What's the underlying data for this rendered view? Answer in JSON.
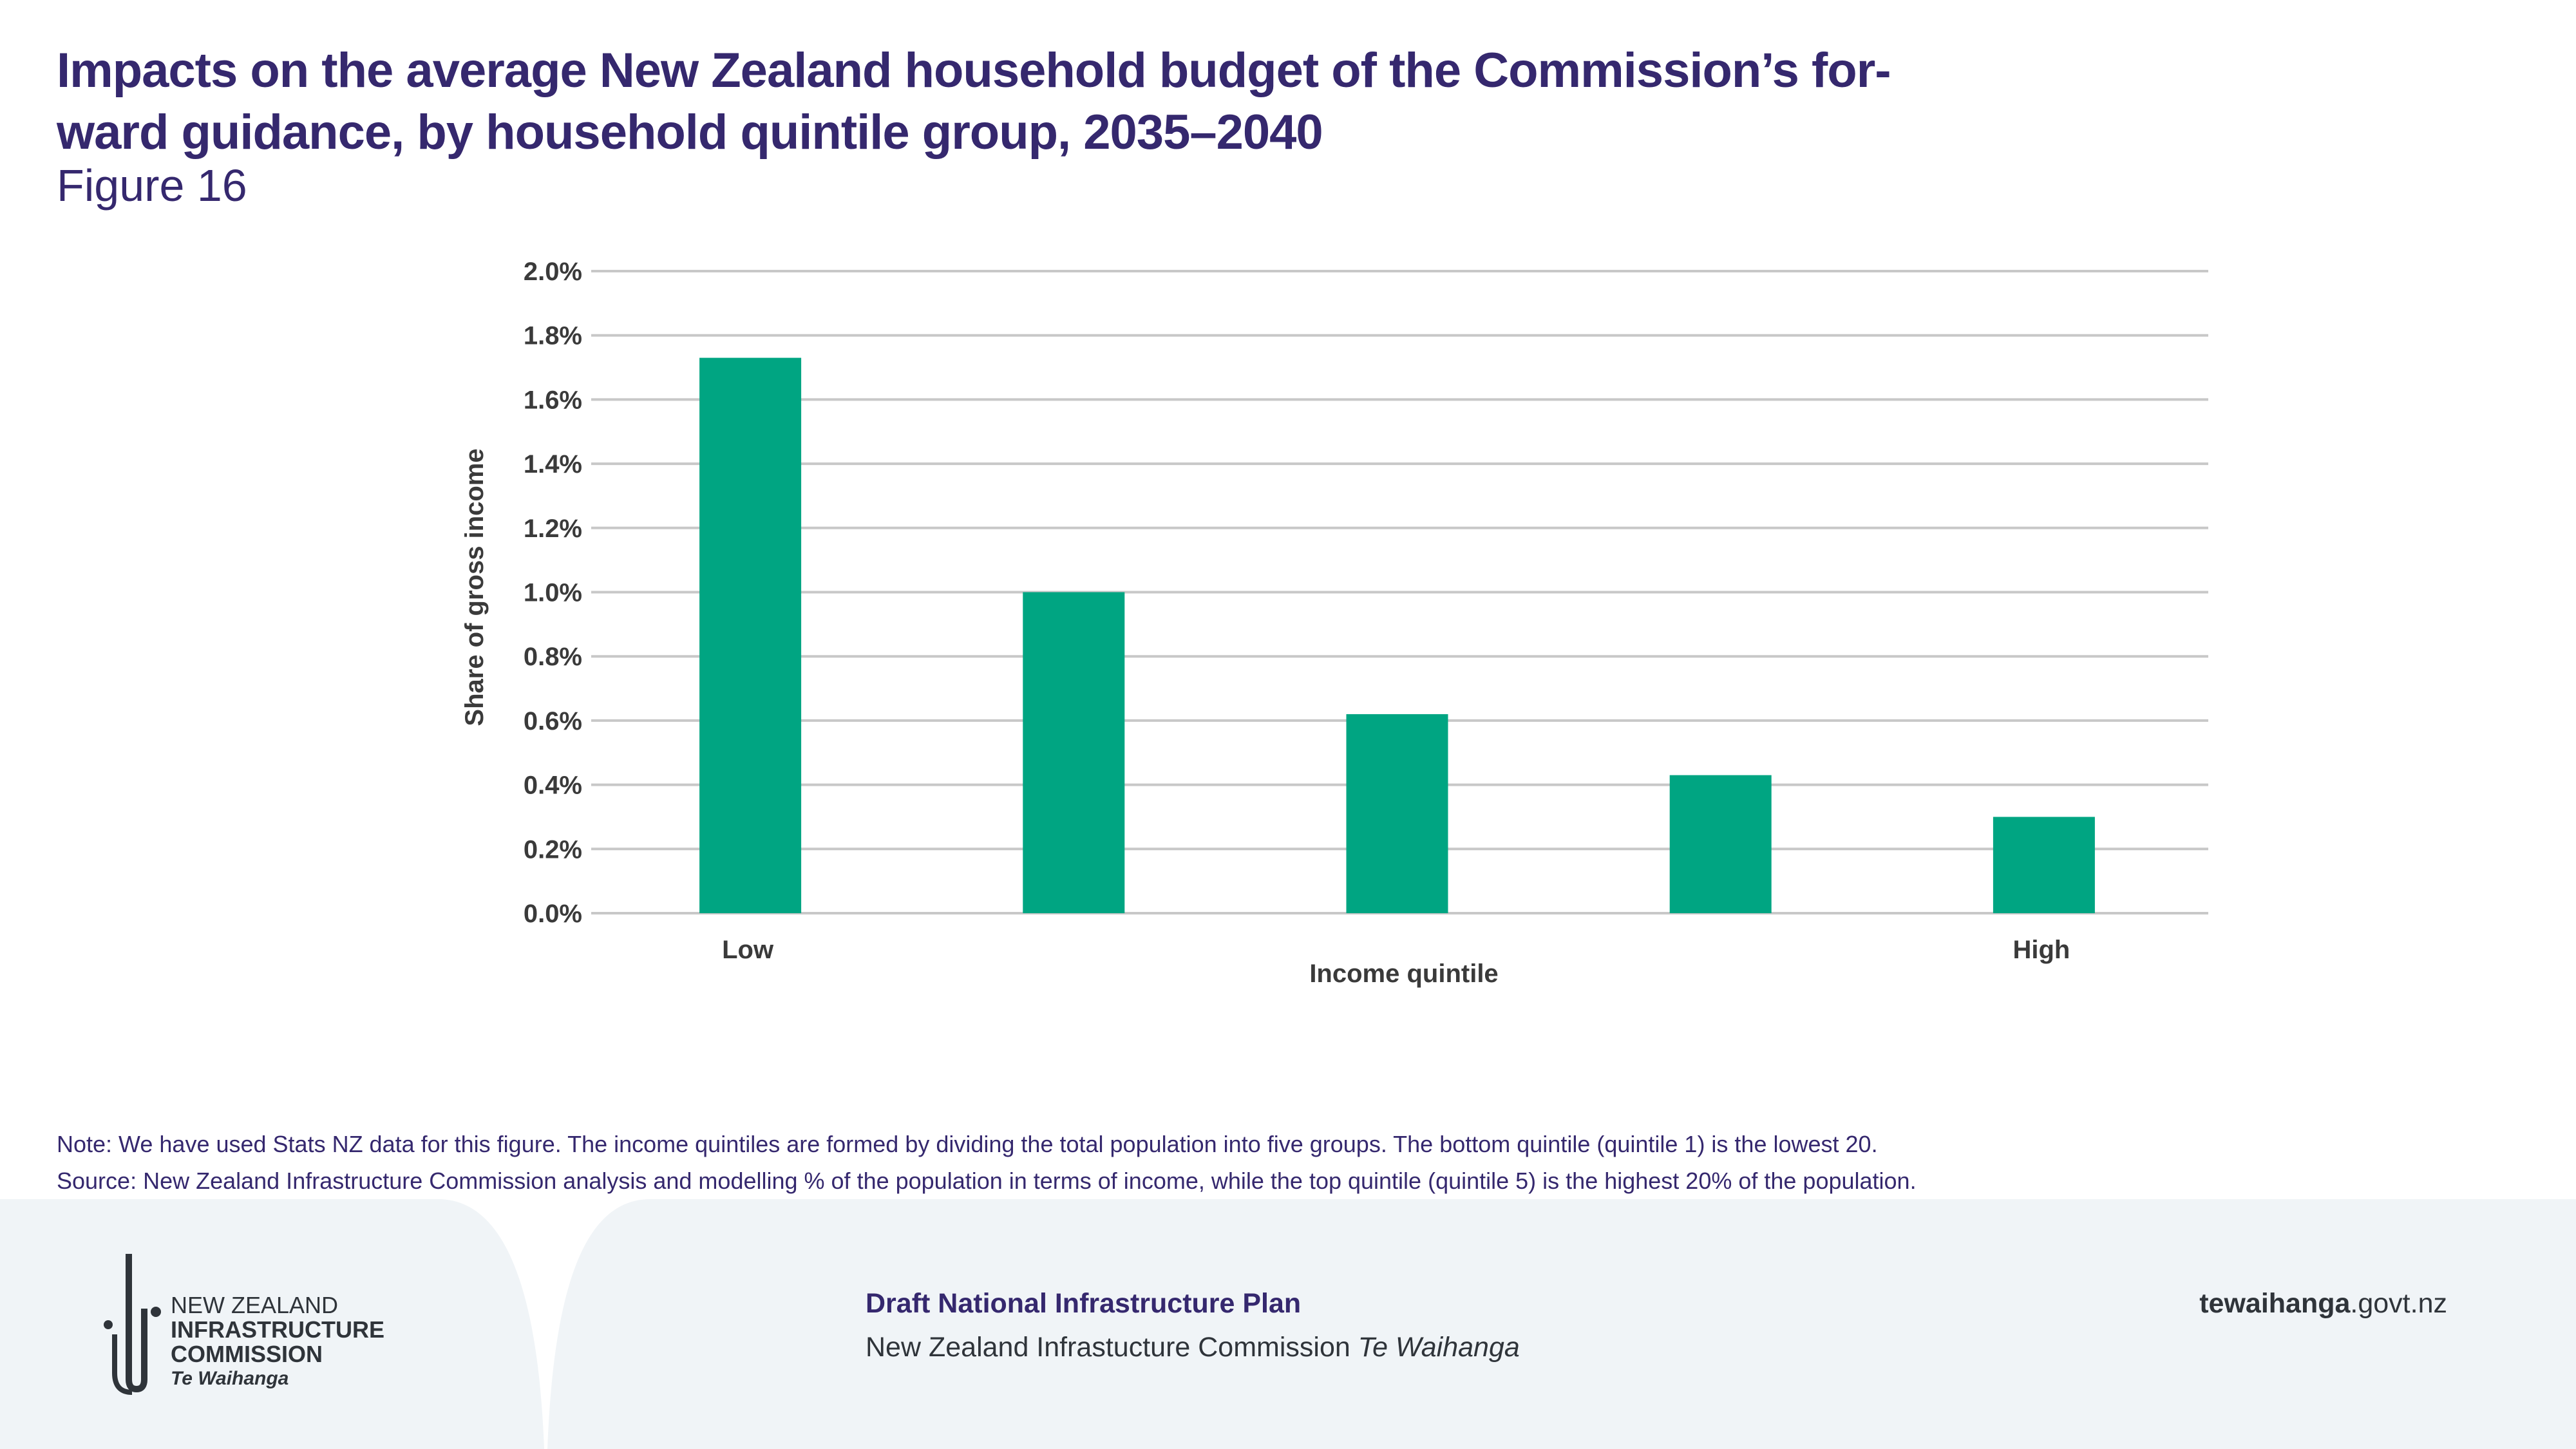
{
  "header": {
    "title": "Impacts on the average New Zealand household budget of the Commission’s for-ward guidance, by household quintile group, 2035–2040",
    "title_line1": "Impacts on the average New Zealand household budget of the Commission’s for-",
    "title_line2": "ward guidance, by household quintile group, 2035–2040",
    "figure_label": "Figure 16"
  },
  "chart_data": {
    "type": "bar",
    "categories": [
      "Low",
      "",
      "",
      "",
      "High"
    ],
    "values": [
      1.73,
      1.0,
      0.62,
      0.43,
      0.3
    ],
    "unit": "%",
    "xlabel": "Income quintile",
    "ylabel": "Share of gross income",
    "ylim": [
      0,
      2.0
    ],
    "yticks": [
      "0.0%",
      "0.2%",
      "0.4%",
      "0.6%",
      "0.8%",
      "1.0%",
      "1.2%",
      "1.4%",
      "1.6%",
      "1.8%",
      "2.0%"
    ],
    "grid": true,
    "bar_color": "#00a582",
    "grid_color": "#c8c8c8"
  },
  "note": {
    "line1": "Note: We have used Stats NZ data for this figure. The income quintiles are formed by dividing the total population into five groups. The bottom quintile (quintile 1) is the lowest 20.",
    "line2": "Source: New Zealand Infrastructure Commission analysis and modelling % of the population in terms of income, while the top quintile (quintile 5) is the highest 20% of the population."
  },
  "footer": {
    "logo": {
      "line1": "NEW ZEALAND",
      "line2": "INFRASTRUCTURE",
      "line3": "COMMISSION",
      "line4": "Te Waihanga"
    },
    "plan_title": "Draft National Infrastructure Plan",
    "org_name": "New Zealand Infrastucture Commission",
    "org_name_italic": "Te Waihanga",
    "url_bold": "tewaihanga",
    "url_rest": ".govt.nz",
    "background_color": "#f0f4f7",
    "accent_color": "#35286e"
  }
}
